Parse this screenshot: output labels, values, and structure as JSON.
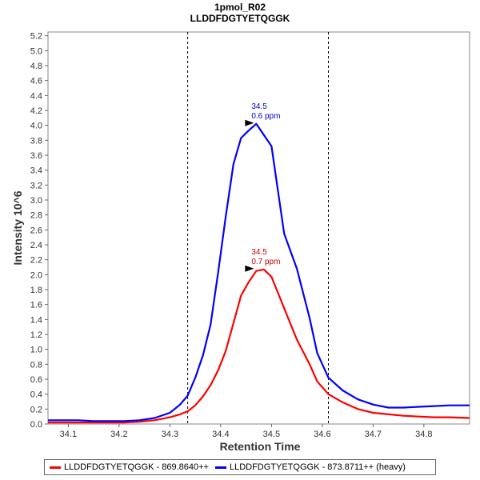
{
  "chart_data": {
    "type": "line",
    "title": "1pmol_R02",
    "subtitle": "LLDDFDGTYETQGGK",
    "xlabel": "Retention Time",
    "ylabel": "Intensity 10^6",
    "xlim": [
      34.06,
      34.89
    ],
    "ylim": [
      0,
      5.25
    ],
    "xticks": [
      34.1,
      34.2,
      34.3,
      34.4,
      34.5,
      34.6,
      34.7,
      34.8
    ],
    "yticks": [
      0.0,
      0.2,
      0.4,
      0.6,
      0.8,
      1.0,
      1.2,
      1.4,
      1.6,
      1.8,
      2.0,
      2.2,
      2.4,
      2.6,
      2.8,
      3.0,
      3.2,
      3.4,
      3.6,
      3.8,
      4.0,
      4.2,
      4.4,
      4.6,
      4.8,
      5.0,
      5.2
    ],
    "boundaries": [
      34.335,
      34.612
    ],
    "series": [
      {
        "name": "LLDDFDGTYETQGGK - 869.8640++",
        "color": "#ff0000",
        "x": [
          34.06,
          34.09,
          34.12,
          34.15,
          34.18,
          34.21,
          34.24,
          34.27,
          34.3,
          34.32,
          34.335,
          34.35,
          34.365,
          34.38,
          34.395,
          34.41,
          34.425,
          34.44,
          34.455,
          34.47,
          34.485,
          34.5,
          34.525,
          34.55,
          34.575,
          34.59,
          34.612,
          34.64,
          34.67,
          34.7,
          34.73,
          34.76,
          34.79,
          34.82,
          34.85,
          34.89
        ],
        "y": [
          0.02,
          0.02,
          0.02,
          0.02,
          0.02,
          0.02,
          0.03,
          0.05,
          0.09,
          0.13,
          0.17,
          0.25,
          0.37,
          0.52,
          0.72,
          0.98,
          1.35,
          1.72,
          1.9,
          2.05,
          2.07,
          1.97,
          1.55,
          1.13,
          0.8,
          0.57,
          0.4,
          0.29,
          0.2,
          0.15,
          0.13,
          0.11,
          0.1,
          0.09,
          0.09,
          0.08
        ]
      },
      {
        "name": "LLDDFDGTYETQGGK - 873.8711++ (heavy)",
        "color": "#0000ff",
        "x": [
          34.06,
          34.09,
          34.12,
          34.15,
          34.18,
          34.21,
          34.24,
          34.27,
          34.3,
          34.32,
          34.335,
          34.35,
          34.365,
          34.38,
          34.395,
          34.41,
          34.425,
          34.44,
          34.455,
          34.47,
          34.5,
          34.525,
          34.55,
          34.575,
          34.59,
          34.612,
          34.64,
          34.67,
          34.7,
          34.73,
          34.76,
          34.79,
          34.82,
          34.85,
          34.89
        ],
        "y": [
          0.05,
          0.05,
          0.05,
          0.04,
          0.04,
          0.04,
          0.05,
          0.08,
          0.15,
          0.26,
          0.38,
          0.62,
          0.92,
          1.33,
          2.03,
          2.78,
          3.48,
          3.83,
          3.93,
          4.02,
          3.72,
          2.55,
          2.08,
          1.42,
          0.95,
          0.62,
          0.45,
          0.33,
          0.26,
          0.22,
          0.22,
          0.23,
          0.24,
          0.25,
          0.25
        ]
      }
    ],
    "annotations": [
      {
        "x": 34.47,
        "y": 4.02,
        "line1": "34.5",
        "line2": "0.6 ppm",
        "color": "#0000cc"
      },
      {
        "x": 34.47,
        "y": 2.07,
        "line1": "34.5",
        "line2": "0.7 ppm",
        "color": "#cc0000"
      }
    ],
    "legend_position": "bottom"
  }
}
